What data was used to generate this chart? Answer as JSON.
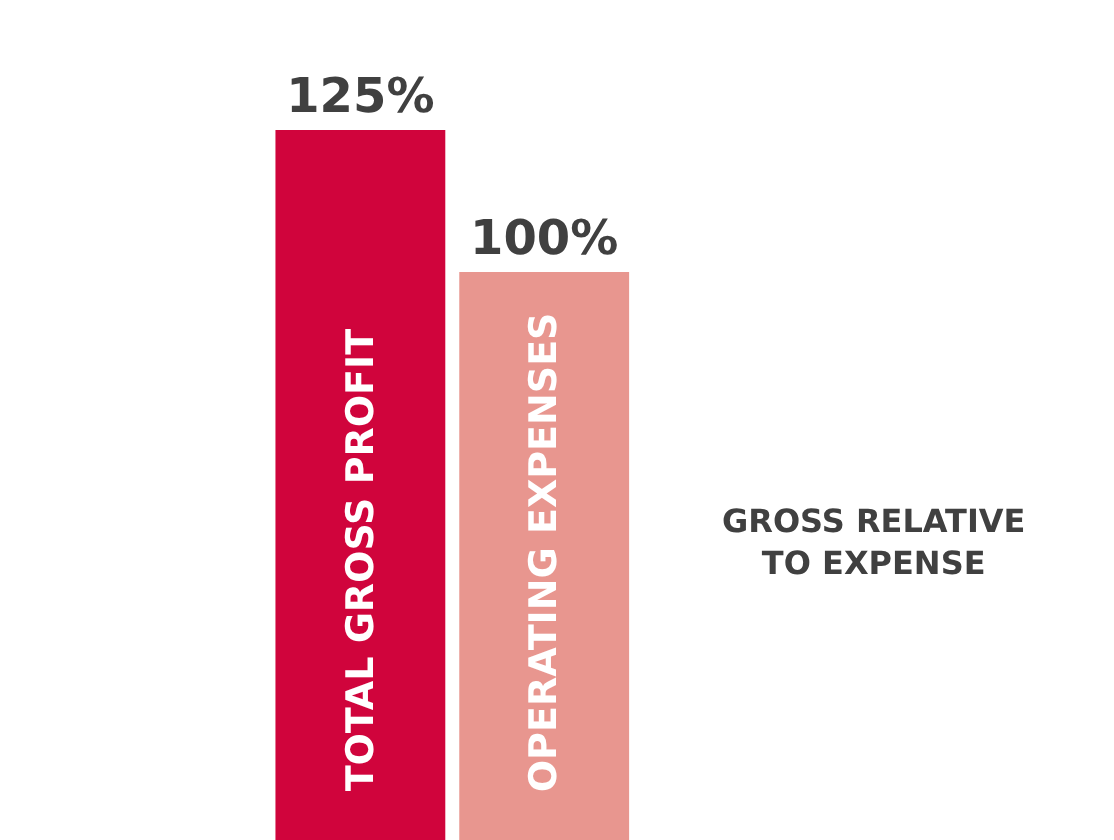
{
  "chart_data": {
    "type": "bar",
    "categories": [
      "TOTAL GROSS PROFIT",
      "OPERATING EXPENSES"
    ],
    "values": [
      125,
      100
    ],
    "colors": [
      "#d0043c",
      "#e8968f"
    ],
    "value_labels": [
      "125%",
      "100%"
    ],
    "annotations": [
      "GROSS RELATIVE\nTO EXPENSE"
    ],
    "legend": false
  }
}
